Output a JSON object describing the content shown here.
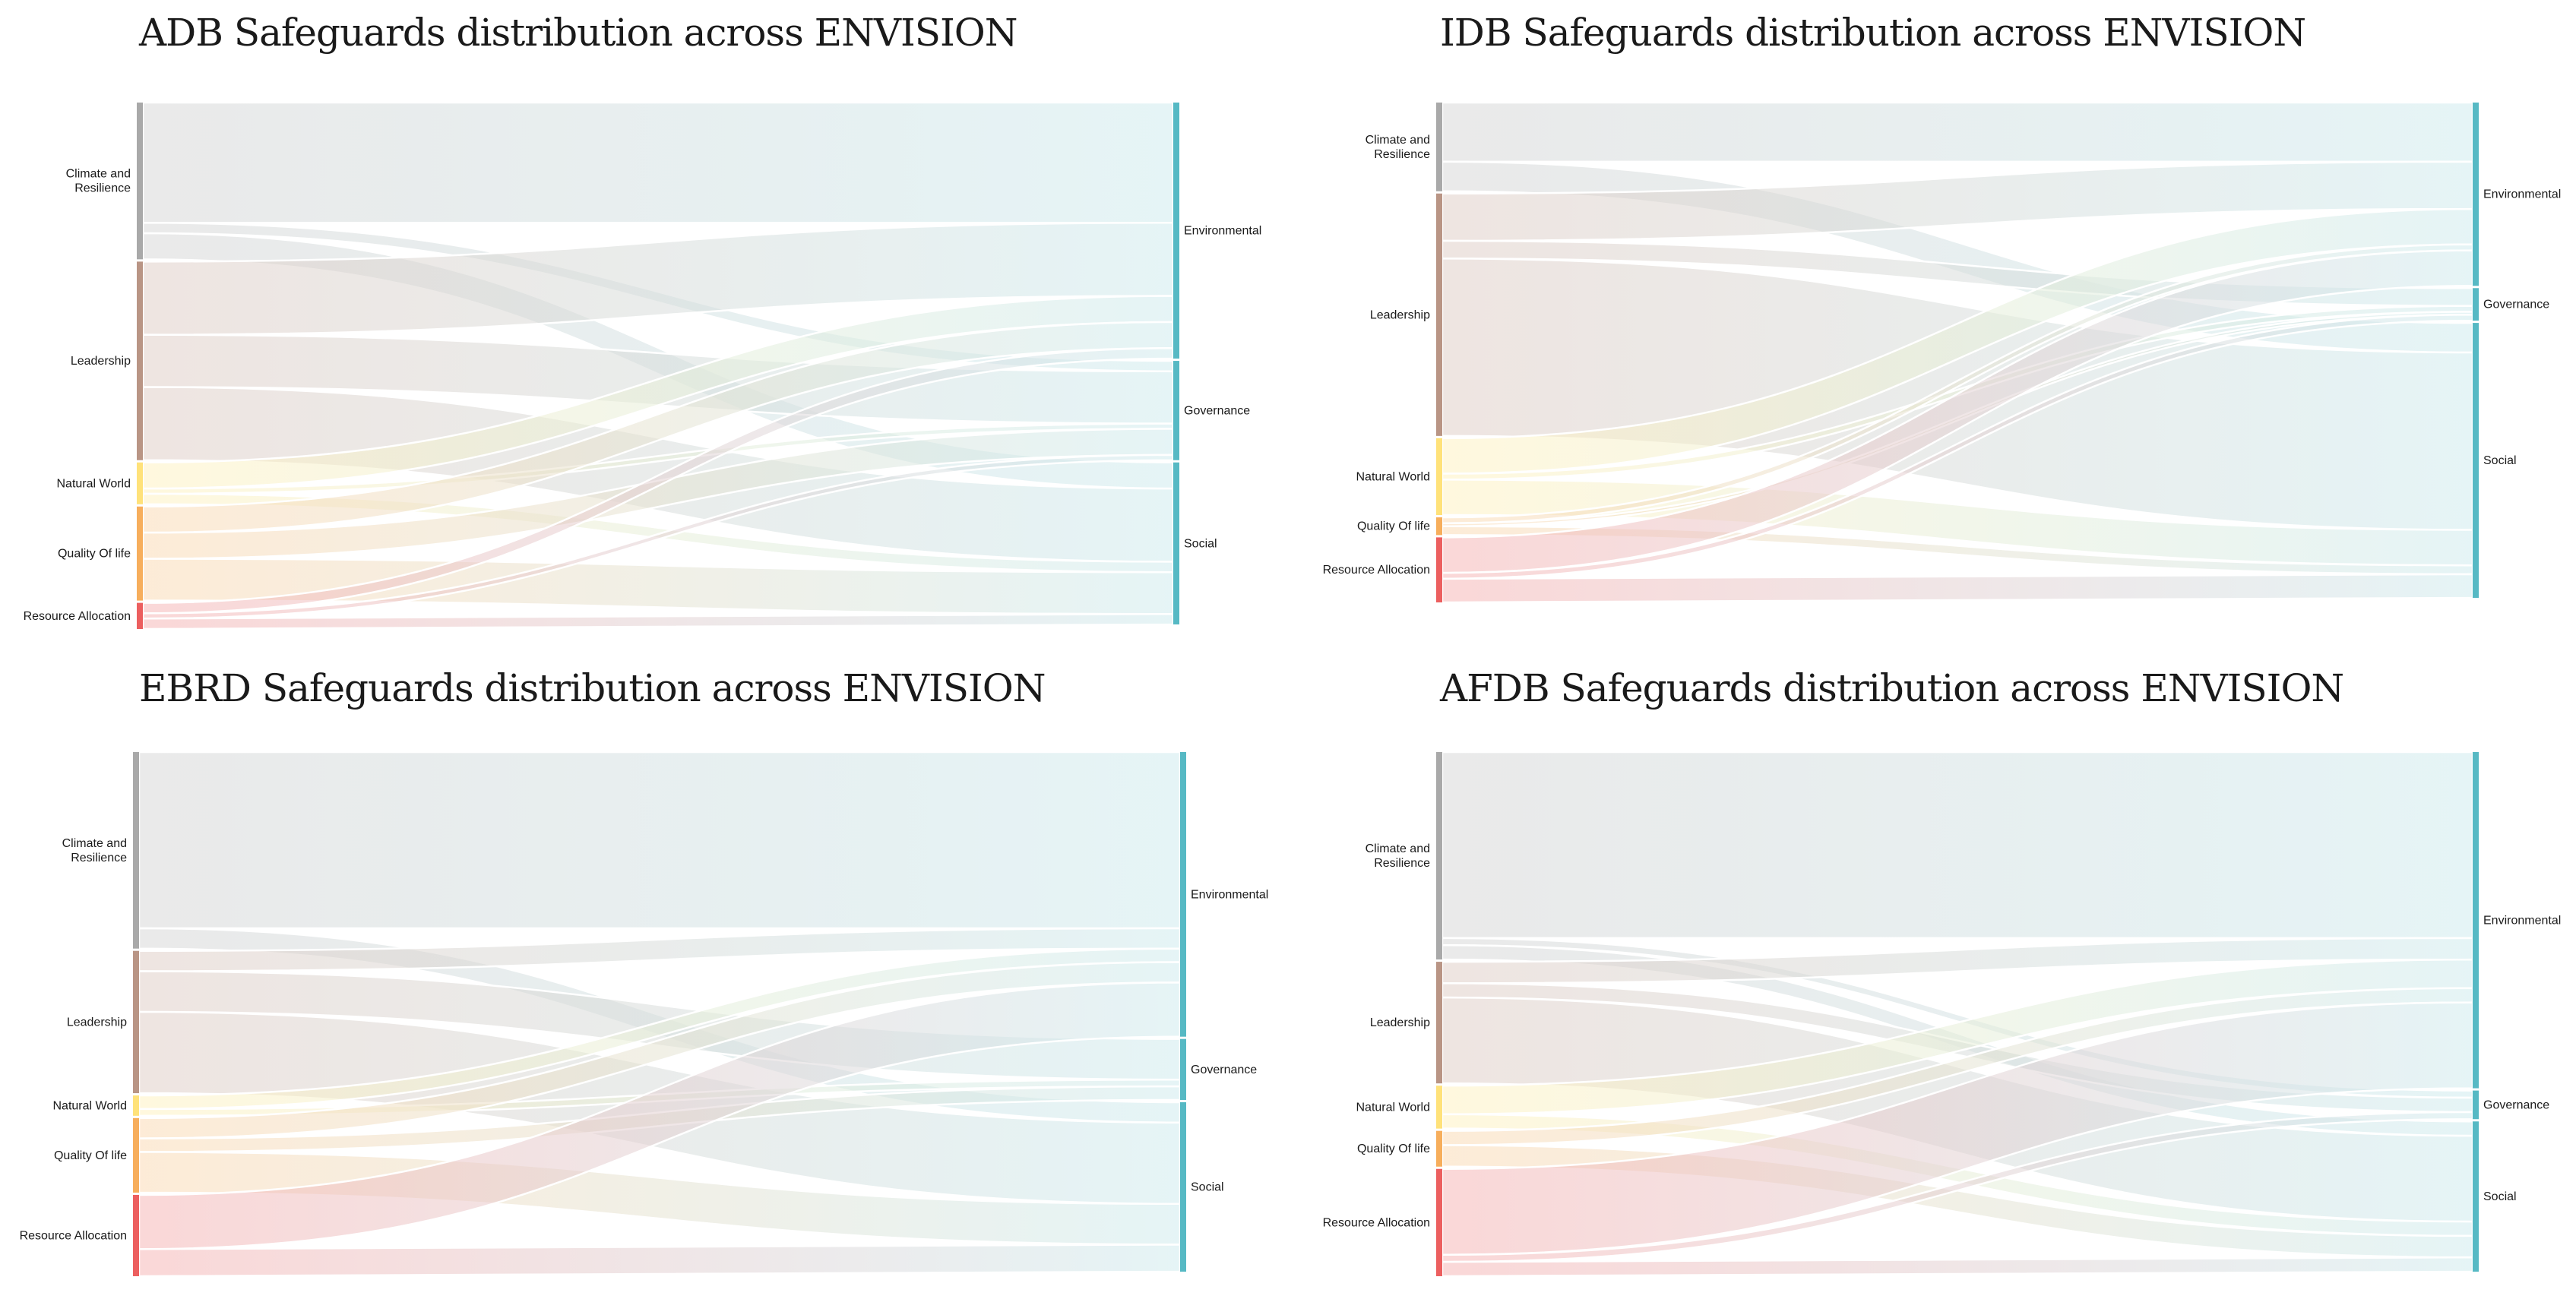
{
  "colors": {
    "Climate and Resilience": "#a9a9a9",
    "Leadership": "#b99585",
    "Natural World": "#ffe27a",
    "Quality Of life": "#f7ae5c",
    "Resource Allocation": "#ec5f5f",
    "target": "#56b9c4"
  },
  "chart_data": [
    {
      "type": "sankey",
      "title": "ADB Safeguards distribution across ENVISION",
      "sources": [
        "Climate and Resilience",
        "Leadership",
        "Natural World",
        "Quality Of life",
        "Resource Allocation"
      ],
      "targets": [
        "Environmental",
        "Governance",
        "Social"
      ],
      "links": [
        {
          "source": "Climate and Resilience",
          "target": "Environmental",
          "value": 23
        },
        {
          "source": "Climate and Resilience",
          "target": "Governance",
          "value": 2
        },
        {
          "source": "Climate and Resilience",
          "target": "Social",
          "value": 5
        },
        {
          "source": "Leadership",
          "target": "Environmental",
          "value": 14
        },
        {
          "source": "Leadership",
          "target": "Governance",
          "value": 10
        },
        {
          "source": "Leadership",
          "target": "Social",
          "value": 14
        },
        {
          "source": "Natural World",
          "target": "Environmental",
          "value": 5
        },
        {
          "source": "Natural World",
          "target": "Governance",
          "value": 1
        },
        {
          "source": "Natural World",
          "target": "Social",
          "value": 2
        },
        {
          "source": "Quality Of life",
          "target": "Environmental",
          "value": 5
        },
        {
          "source": "Quality Of life",
          "target": "Governance",
          "value": 5
        },
        {
          "source": "Quality Of life",
          "target": "Social",
          "value": 8
        },
        {
          "source": "Resource Allocation",
          "target": "Environmental",
          "value": 2
        },
        {
          "source": "Resource Allocation",
          "target": "Governance",
          "value": 1
        },
        {
          "source": "Resource Allocation",
          "target": "Social",
          "value": 2
        }
      ]
    },
    {
      "type": "sankey",
      "title": "IDB Safeguards distribution across ENVISION",
      "sources": [
        "Climate and Resilience",
        "Leadership",
        "Natural World",
        "Quality Of life",
        "Resource Allocation"
      ],
      "targets": [
        "Environmental",
        "Governance",
        "Social"
      ],
      "links": [
        {
          "source": "Climate and Resilience",
          "target": "Environmental",
          "value": 10
        },
        {
          "source": "Climate and Resilience",
          "target": "Social",
          "value": 5
        },
        {
          "source": "Leadership",
          "target": "Environmental",
          "value": 8
        },
        {
          "source": "Leadership",
          "target": "Governance",
          "value": 3
        },
        {
          "source": "Leadership",
          "target": "Social",
          "value": 30
        },
        {
          "source": "Natural World",
          "target": "Environmental",
          "value": 6
        },
        {
          "source": "Natural World",
          "target": "Governance",
          "value": 1
        },
        {
          "source": "Natural World",
          "target": "Social",
          "value": 6
        },
        {
          "source": "Quality Of life",
          "target": "Environmental",
          "value": 1
        },
        {
          "source": "Quality Of life",
          "target": "Governance",
          "value": 0.5
        },
        {
          "source": "Quality Of life",
          "target": "Social",
          "value": 1.5
        },
        {
          "source": "Resource Allocation",
          "target": "Environmental",
          "value": 6
        },
        {
          "source": "Resource Allocation",
          "target": "Governance",
          "value": 1
        },
        {
          "source": "Resource Allocation",
          "target": "Social",
          "value": 4
        }
      ]
    },
    {
      "type": "sankey",
      "title": "EBRD Safeguards distribution across ENVISION",
      "sources": [
        "Climate and Resilience",
        "Leadership",
        "Natural World",
        "Quality Of life",
        "Resource Allocation"
      ],
      "targets": [
        "Environmental",
        "Governance",
        "Social"
      ],
      "links": [
        {
          "source": "Climate and Resilience",
          "target": "Environmental",
          "value": 26
        },
        {
          "source": "Climate and Resilience",
          "target": "Social",
          "value": 3
        },
        {
          "source": "Leadership",
          "target": "Environmental",
          "value": 3
        },
        {
          "source": "Leadership",
          "target": "Governance",
          "value": 6
        },
        {
          "source": "Leadership",
          "target": "Social",
          "value": 12
        },
        {
          "source": "Natural World",
          "target": "Environmental",
          "value": 2
        },
        {
          "source": "Natural World",
          "target": "Governance",
          "value": 1
        },
        {
          "source": "Quality Of life",
          "target": "Environmental",
          "value": 3
        },
        {
          "source": "Quality Of life",
          "target": "Governance",
          "value": 2
        },
        {
          "source": "Quality Of life",
          "target": "Social",
          "value": 6
        },
        {
          "source": "Resource Allocation",
          "target": "Environmental",
          "value": 8
        },
        {
          "source": "Resource Allocation",
          "target": "Social",
          "value": 4
        }
      ]
    },
    {
      "type": "sankey",
      "title": "AFDB Safeguards distribution across ENVISION",
      "sources": [
        "Climate and Resilience",
        "Leadership",
        "Natural World",
        "Quality Of life",
        "Resource Allocation"
      ],
      "targets": [
        "Environmental",
        "Governance",
        "Social"
      ],
      "links": [
        {
          "source": "Climate and Resilience",
          "target": "Environmental",
          "value": 26
        },
        {
          "source": "Climate and Resilience",
          "target": "Governance",
          "value": 1
        },
        {
          "source": "Climate and Resilience",
          "target": "Social",
          "value": 2
        },
        {
          "source": "Leadership",
          "target": "Environmental",
          "value": 3
        },
        {
          "source": "Leadership",
          "target": "Governance",
          "value": 2
        },
        {
          "source": "Leadership",
          "target": "Social",
          "value": 12
        },
        {
          "source": "Natural World",
          "target": "Environmental",
          "value": 4
        },
        {
          "source": "Natural World",
          "target": "Social",
          "value": 2
        },
        {
          "source": "Quality Of life",
          "target": "Environmental",
          "value": 2
        },
        {
          "source": "Quality Of life",
          "target": "Social",
          "value": 3
        },
        {
          "source": "Resource Allocation",
          "target": "Environmental",
          "value": 12
        },
        {
          "source": "Resource Allocation",
          "target": "Governance",
          "value": 1
        },
        {
          "source": "Resource Allocation",
          "target": "Social",
          "value": 2
        }
      ]
    }
  ]
}
